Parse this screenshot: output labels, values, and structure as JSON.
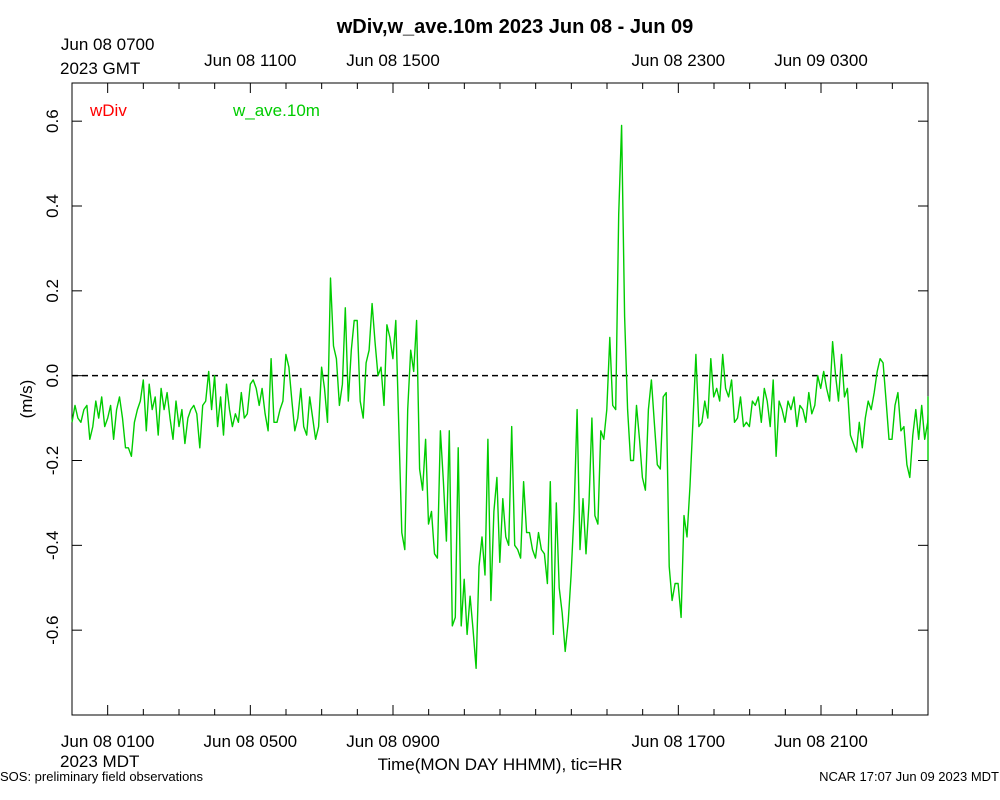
{
  "chart_data": {
    "type": "line",
    "title": "wDiv,w_ave.10m 2023 Jun 08 - Jun 09",
    "xlabel": "Time(MON DAY HHMM), tic=HR",
    "ylabel": "(m/s)",
    "x_start": "2023-06-08 00:00 MDT",
    "x_end": "2023-06-09 00:00 MDT",
    "ylim": [
      -0.8,
      0.69
    ],
    "y_ticks": [
      -0.6,
      -0.4,
      -0.2,
      0.0,
      0.2,
      0.4,
      0.6
    ],
    "y_tick_labels": [
      "-0.6",
      "-0.4",
      "-0.2",
      "0.0",
      "0.2",
      "0.4",
      "0.6"
    ],
    "bottom_axis": {
      "tick_labels": [
        {
          "hour": 1,
          "label": "Jun 08 0100"
        },
        {
          "hour": 5,
          "label": "Jun 08 0500"
        },
        {
          "hour": 9,
          "label": "Jun 08 0900"
        },
        {
          "hour": 17,
          "label": "Jun 08 1700"
        },
        {
          "hour": 21,
          "label": "Jun 08 2100"
        }
      ],
      "zone_label": "2023 MDT"
    },
    "top_axis": {
      "tick_labels": [
        {
          "hour": 1,
          "label": "Jun 08 0700"
        },
        {
          "hour": 5,
          "label": "Jun 08 1100"
        },
        {
          "hour": 9,
          "label": "Jun 08 1500"
        },
        {
          "hour": 17,
          "label": "Jun 08 2300"
        },
        {
          "hour": 21,
          "label": "Jun 09 0300"
        }
      ],
      "zone_label": "2023 GMT"
    },
    "zero_line": {
      "y": 0.0,
      "style": "dashed"
    },
    "legend": [
      {
        "name": "wDiv",
        "color": "#ff0000"
      },
      {
        "name": "w_ave.10m",
        "color": "#00cc00"
      }
    ],
    "series": [
      {
        "name": "w_ave.10m",
        "color": "#00cc00",
        "x_start_hour": 0,
        "x_step_hours": 0.0833,
        "values": [
          -0.11,
          -0.07,
          -0.1,
          -0.11,
          -0.08,
          -0.07,
          -0.15,
          -0.12,
          -0.06,
          -0.1,
          -0.05,
          -0.12,
          -0.1,
          -0.07,
          -0.15,
          -0.08,
          -0.05,
          -0.1,
          -0.17,
          -0.17,
          -0.19,
          -0.11,
          -0.08,
          -0.06,
          -0.01,
          -0.13,
          -0.02,
          -0.08,
          -0.05,
          -0.14,
          -0.03,
          -0.08,
          -0.04,
          -0.1,
          -0.15,
          -0.06,
          -0.12,
          -0.08,
          -0.16,
          -0.1,
          -0.08,
          -0.07,
          -0.09,
          -0.17,
          -0.07,
          -0.06,
          0.01,
          -0.08,
          0.0,
          -0.12,
          -0.05,
          -0.14,
          -0.02,
          -0.08,
          -0.12,
          -0.09,
          -0.11,
          -0.04,
          -0.1,
          -0.09,
          -0.02,
          -0.01,
          -0.03,
          -0.07,
          -0.03,
          -0.09,
          -0.13,
          0.04,
          -0.11,
          -0.11,
          -0.08,
          -0.06,
          0.05,
          0.02,
          -0.06,
          -0.13,
          -0.1,
          -0.03,
          -0.12,
          -0.14,
          -0.05,
          -0.1,
          -0.15,
          -0.12,
          0.02,
          -0.03,
          -0.11,
          0.23,
          0.07,
          0.04,
          -0.07,
          -0.02,
          0.16,
          -0.06,
          0.06,
          0.13,
          0.13,
          -0.06,
          -0.1,
          0.03,
          0.06,
          0.17,
          0.08,
          0.0,
          0.02,
          -0.07,
          0.12,
          0.09,
          0.04,
          0.13,
          -0.12,
          -0.37,
          -0.41,
          -0.08,
          0.06,
          0.01,
          0.13,
          -0.22,
          -0.27,
          -0.15,
          -0.35,
          -0.32,
          -0.42,
          -0.43,
          -0.13,
          -0.25,
          -0.39,
          -0.13,
          -0.59,
          -0.57,
          -0.17,
          -0.59,
          -0.48,
          -0.61,
          -0.52,
          -0.6,
          -0.69,
          -0.45,
          -0.38,
          -0.47,
          -0.15,
          -0.53,
          -0.32,
          -0.24,
          -0.44,
          -0.29,
          -0.38,
          -0.4,
          -0.12,
          -0.4,
          -0.41,
          -0.43,
          -0.25,
          -0.37,
          -0.37,
          -0.41,
          -0.43,
          -0.37,
          -0.41,
          -0.42,
          -0.49,
          -0.25,
          -0.61,
          -0.3,
          -0.5,
          -0.56,
          -0.65,
          -0.58,
          -0.47,
          -0.32,
          -0.08,
          -0.41,
          -0.29,
          -0.42,
          -0.3,
          -0.1,
          -0.33,
          -0.35,
          -0.13,
          -0.15,
          -0.08,
          0.09,
          -0.07,
          -0.08,
          0.38,
          0.59,
          0.14,
          -0.08,
          -0.2,
          -0.2,
          -0.07,
          -0.15,
          -0.24,
          -0.27,
          -0.08,
          -0.01,
          -0.11,
          -0.21,
          -0.22,
          -0.05,
          -0.04,
          -0.45,
          -0.53,
          -0.49,
          -0.49,
          -0.57,
          -0.33,
          -0.38,
          -0.26,
          -0.11,
          0.05,
          -0.12,
          -0.11,
          -0.06,
          -0.1,
          0.04,
          -0.05,
          -0.03,
          -0.06,
          0.05,
          -0.03,
          -0.05,
          -0.01,
          -0.11,
          -0.1,
          -0.05,
          -0.12,
          -0.11,
          -0.12,
          -0.06,
          -0.07,
          -0.05,
          -0.11,
          -0.03,
          -0.06,
          -0.12,
          -0.01,
          -0.19,
          -0.06,
          -0.08,
          -0.11,
          -0.06,
          -0.08,
          -0.05,
          -0.12,
          -0.07,
          -0.08,
          -0.11,
          -0.04,
          -0.09,
          -0.07,
          0.0,
          -0.03,
          0.01,
          -0.03,
          -0.06,
          0.08,
          0.0,
          -0.06,
          0.05,
          -0.05,
          -0.03,
          -0.14,
          -0.16,
          -0.18,
          -0.11,
          -0.17,
          -0.1,
          -0.06,
          -0.08,
          -0.04,
          0.01,
          0.04,
          0.03,
          -0.06,
          -0.15,
          -0.15,
          -0.07,
          -0.04,
          -0.13,
          -0.12,
          -0.21,
          -0.24,
          -0.14,
          -0.08,
          -0.15,
          -0.07,
          -0.15,
          -0.11,
          -0.09,
          -0.05,
          -0.1,
          -0.11,
          -0.2
        ]
      }
    ]
  },
  "footer": {
    "left": "SOS: preliminary field observations",
    "right": "NCAR 17:07 Jun 09 2023 MDT"
  }
}
